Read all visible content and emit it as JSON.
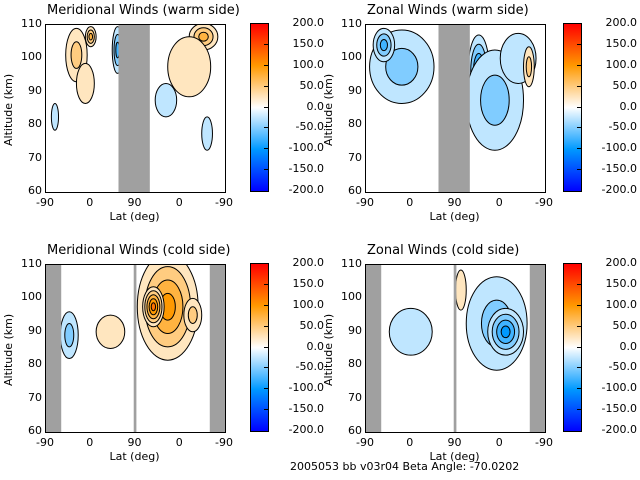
{
  "chart_data": [
    {
      "type": "heatmap",
      "id": "meridional-warm",
      "title": "Meridional Winds (warm side)",
      "xlabel": "Lat (deg)",
      "ylabel": "Altitude (km)",
      "xticks": [
        "-90",
        "0",
        "90",
        "0",
        "-90"
      ],
      "yticks": [
        "60",
        "70",
        "80",
        "90",
        "100",
        "110"
      ],
      "ylim": [
        60,
        110
      ],
      "gray_bands": [
        [
          0.405,
          0.58
        ]
      ],
      "blobs": [
        {
          "x": 0.17,
          "y": 0.82,
          "rx": 0.06,
          "ry": 0.16,
          "v": 40
        },
        {
          "x": 0.22,
          "y": 0.65,
          "rx": 0.05,
          "ry": 0.12,
          "v": 30
        },
        {
          "x": 0.25,
          "y": 0.93,
          "rx": 0.03,
          "ry": 0.06,
          "v": 70
        },
        {
          "x": 0.88,
          "y": 0.93,
          "rx": 0.08,
          "ry": 0.08,
          "v": 80
        },
        {
          "x": 0.8,
          "y": 0.75,
          "rx": 0.12,
          "ry": 0.18,
          "v": 25
        },
        {
          "x": 0.4,
          "y": 0.85,
          "rx": 0.03,
          "ry": 0.14,
          "v": -70
        },
        {
          "x": 0.67,
          "y": 0.55,
          "rx": 0.06,
          "ry": 0.1,
          "v": -30
        },
        {
          "x": 0.05,
          "y": 0.45,
          "rx": 0.02,
          "ry": 0.08,
          "v": -25
        },
        {
          "x": 0.9,
          "y": 0.35,
          "rx": 0.03,
          "ry": 0.1,
          "v": -20
        }
      ]
    },
    {
      "type": "heatmap",
      "id": "zonal-warm",
      "title": "Zonal Winds (warm side)",
      "xlabel": "Lat (deg)",
      "ylabel": "Altitude (km)",
      "xticks": [
        "-90",
        "0",
        "90",
        "0",
        "-90"
      ],
      "yticks": [
        "60",
        "70",
        "80",
        "90",
        "100",
        "110"
      ],
      "ylim": [
        60,
        110
      ],
      "gray_bands": [
        [
          0.405,
          0.58
        ]
      ],
      "blobs": [
        {
          "x": 0.2,
          "y": 0.75,
          "rx": 0.18,
          "ry": 0.22,
          "v": -40
        },
        {
          "x": 0.1,
          "y": 0.88,
          "rx": 0.06,
          "ry": 0.1,
          "v": -70
        },
        {
          "x": 0.63,
          "y": 0.72,
          "rx": 0.06,
          "ry": 0.22,
          "v": -100
        },
        {
          "x": 0.72,
          "y": 0.55,
          "rx": 0.16,
          "ry": 0.3,
          "v": -50
        },
        {
          "x": 0.85,
          "y": 0.8,
          "rx": 0.1,
          "ry": 0.15,
          "v": -30
        },
        {
          "x": 0.91,
          "y": 0.75,
          "rx": 0.03,
          "ry": 0.12,
          "v": 40
        }
      ]
    },
    {
      "type": "heatmap",
      "id": "meridional-cold",
      "title": "Meridional Winds (cold side)",
      "xlabel": "Lat (deg)",
      "ylabel": "Altitude (km)",
      "xticks": [
        "-90",
        "0",
        "90",
        "0",
        "-90"
      ],
      "yticks": [
        "60",
        "70",
        "80",
        "90",
        "100",
        "110"
      ],
      "ylim": [
        60,
        110
      ],
      "gray_bands": [
        [
          0.0,
          0.085
        ],
        [
          0.49,
          0.505
        ],
        [
          0.915,
          1.0
        ]
      ],
      "blobs": [
        {
          "x": 0.13,
          "y": 0.58,
          "rx": 0.05,
          "ry": 0.14,
          "v": -40
        },
        {
          "x": 0.36,
          "y": 0.6,
          "rx": 0.08,
          "ry": 0.1,
          "v": 25
        },
        {
          "x": 0.68,
          "y": 0.75,
          "rx": 0.17,
          "ry": 0.32,
          "v": 95
        },
        {
          "x": 0.6,
          "y": 0.75,
          "rx": 0.06,
          "ry": 0.12,
          "v": 120
        },
        {
          "x": 0.82,
          "y": 0.7,
          "rx": 0.05,
          "ry": 0.1,
          "v": 60
        }
      ]
    },
    {
      "type": "heatmap",
      "id": "zonal-cold",
      "title": "Zonal Winds (cold side)",
      "xlabel": "Lat (deg)",
      "ylabel": "Altitude (km)",
      "xticks": [
        "-90",
        "0",
        "90",
        "0",
        "-90"
      ],
      "yticks": [
        "60",
        "70",
        "80",
        "90",
        "100",
        "110"
      ],
      "ylim": [
        60,
        110
      ],
      "gray_bands": [
        [
          0.0,
          0.085
        ],
        [
          0.49,
          0.505
        ],
        [
          0.915,
          1.0
        ]
      ],
      "blobs": [
        {
          "x": 0.25,
          "y": 0.6,
          "rx": 0.12,
          "ry": 0.14,
          "v": -35
        },
        {
          "x": 0.53,
          "y": 0.85,
          "rx": 0.03,
          "ry": 0.12,
          "v": 35
        },
        {
          "x": 0.73,
          "y": 0.65,
          "rx": 0.17,
          "ry": 0.28,
          "v": -60
        },
        {
          "x": 0.78,
          "y": 0.6,
          "rx": 0.1,
          "ry": 0.14,
          "v": -95
        }
      ]
    }
  ],
  "colorbar": {
    "ticks": [
      "200.0",
      "150.0",
      "100.0",
      "50.0",
      "0.0",
      "-50.0",
      "-100.0",
      "-150.0",
      "-200.0"
    ],
    "range": [
      -200,
      200
    ],
    "colors": {
      "max": "#ff0000",
      "high": "#ff9900",
      "zero": "#ffffff",
      "low": "#0099ff",
      "min": "#0000ff"
    }
  },
  "footer": {
    "text": "2005053 bb v03r04   Beta Angle: -70.0202"
  }
}
